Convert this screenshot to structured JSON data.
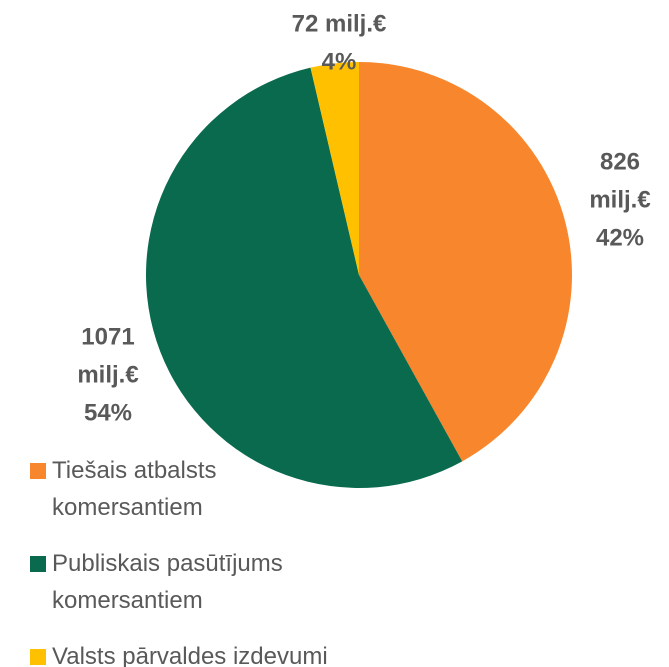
{
  "chart_data": {
    "type": "pie",
    "categories": [
      "Tiešais atbalsts komersantiem",
      "Publiskais pasūtījums komersantiem",
      "Valsts pārvaldes izdevumi"
    ],
    "values": [
      826,
      1071,
      72
    ],
    "value_labels": [
      [
        "826",
        "milj.€",
        "42%"
      ],
      [
        "1071",
        "milj.€",
        "54%"
      ],
      [
        "72 milj.€",
        "4%"
      ]
    ],
    "colors": [
      "#f8862c",
      "#0a6a4e",
      "#ffc000"
    ],
    "legend": "bottom-left"
  }
}
